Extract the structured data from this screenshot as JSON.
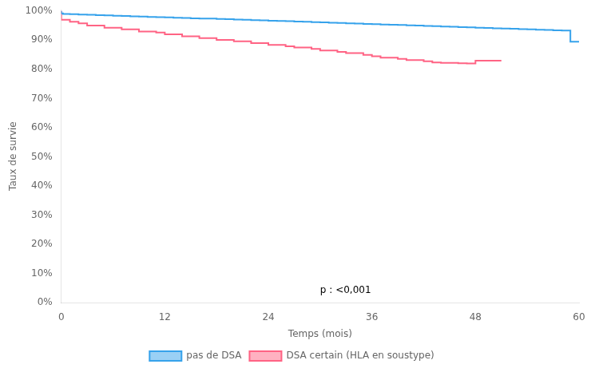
{
  "chart_data": {
    "type": "step",
    "xlabel": "Temps (mois)",
    "ylabel": "Taux de survie",
    "xlim": [
      0,
      60
    ],
    "ylim": [
      0,
      1.005
    ],
    "xticks": [
      0,
      12,
      24,
      36,
      48,
      60
    ],
    "yticks": [
      {
        "value": 0.0,
        "label": "0%"
      },
      {
        "value": 0.1,
        "label": "10%"
      },
      {
        "value": 0.2,
        "label": "20%"
      },
      {
        "value": 0.3,
        "label": "30%"
      },
      {
        "value": 0.4,
        "label": "40%"
      },
      {
        "value": 0.5,
        "label": "50%"
      },
      {
        "value": 0.6,
        "label": "60%"
      },
      {
        "value": 0.7,
        "label": "70%"
      },
      {
        "value": 0.8,
        "label": "80%"
      },
      {
        "value": 0.9,
        "label": "90%"
      },
      {
        "value": 1.0,
        "label": "100%"
      }
    ],
    "annotation": "p : <0,001",
    "grid": false,
    "legend": "bottom",
    "series": [
      {
        "name": "pas de DSA",
        "x": [
          0,
          0.2,
          1,
          2,
          3,
          4,
          5,
          6,
          7,
          8,
          9,
          10,
          11,
          12,
          13,
          14,
          15,
          16,
          17,
          18,
          19,
          20,
          21,
          22,
          23,
          24,
          25,
          26,
          27,
          28,
          29,
          30,
          31,
          32,
          33,
          34,
          35,
          36,
          37,
          38,
          39,
          40,
          41,
          42,
          43,
          44,
          45,
          46,
          47,
          48,
          49,
          50,
          51,
          52,
          53,
          54,
          55,
          56,
          57,
          58,
          59,
          60
        ],
        "values": [
          1.0,
          0.992,
          0.99,
          0.989,
          0.988,
          0.987,
          0.986,
          0.985,
          0.984,
          0.983,
          0.982,
          0.981,
          0.98,
          0.979,
          0.978,
          0.977,
          0.976,
          0.975,
          0.974,
          0.974,
          0.973,
          0.972,
          0.971,
          0.97,
          0.969,
          0.968,
          0.967,
          0.966,
          0.965,
          0.964,
          0.963,
          0.962,
          0.961,
          0.96,
          0.959,
          0.958,
          0.957,
          0.956,
          0.955,
          0.954,
          0.953,
          0.952,
          0.951,
          0.95,
          0.949,
          0.948,
          0.947,
          0.946,
          0.945,
          0.944,
          0.943,
          0.942,
          0.941,
          0.94,
          0.939,
          0.938,
          0.937,
          0.936,
          0.935,
          0.934,
          0.933,
          0.895
        ]
      },
      {
        "name": "DSA certain (HLA en soustype)",
        "x": [
          0,
          1,
          2,
          3,
          5,
          7,
          9,
          11,
          12,
          14,
          16,
          18,
          20,
          22,
          24,
          26,
          27,
          29,
          30,
          32,
          33,
          35,
          36,
          37,
          39,
          40,
          42,
          43,
          44,
          46,
          47,
          48,
          50,
          51
        ],
        "values": [
          1.0,
          0.97,
          0.963,
          0.958,
          0.95,
          0.943,
          0.937,
          0.93,
          0.926,
          0.92,
          0.913,
          0.907,
          0.901,
          0.896,
          0.89,
          0.884,
          0.879,
          0.875,
          0.87,
          0.865,
          0.86,
          0.856,
          0.85,
          0.845,
          0.84,
          0.836,
          0.832,
          0.828,
          0.824,
          0.822,
          0.821,
          0.82,
          0.83,
          0.83
        ]
      }
    ]
  }
}
